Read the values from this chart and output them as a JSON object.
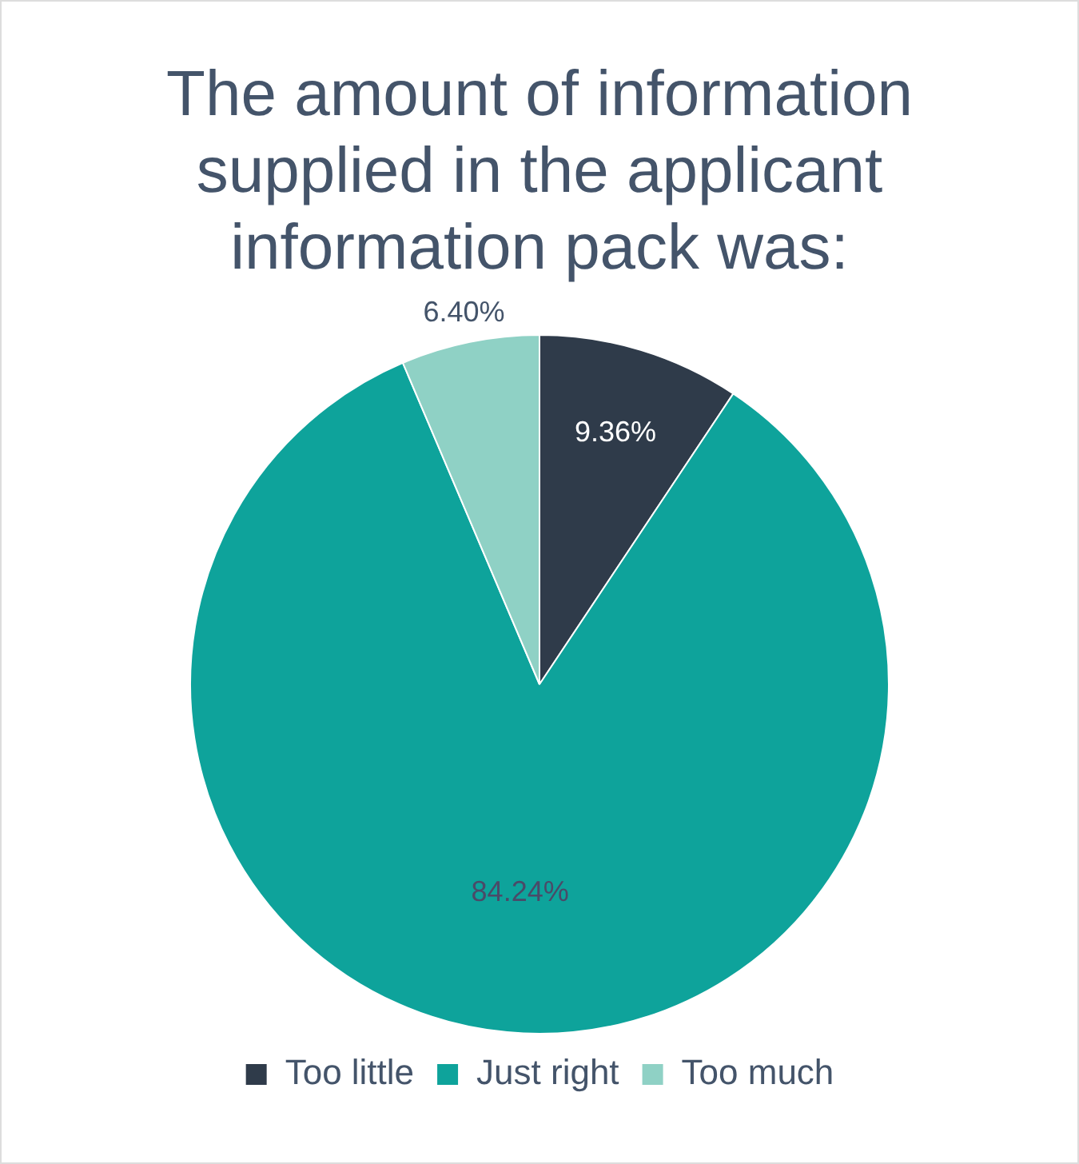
{
  "chart_data": {
    "type": "pie",
    "title": "The amount of information supplied in the applicant information pack was:",
    "categories": [
      "Too little",
      "Just right",
      "Too much"
    ],
    "values": [
      9.36,
      84.24,
      6.4
    ],
    "value_labels": [
      "9.36%",
      "84.24%",
      "6.40%"
    ],
    "colors": [
      "#2f3b4a",
      "#0ea39b",
      "#8fd1c5"
    ],
    "legend": "bottom"
  }
}
